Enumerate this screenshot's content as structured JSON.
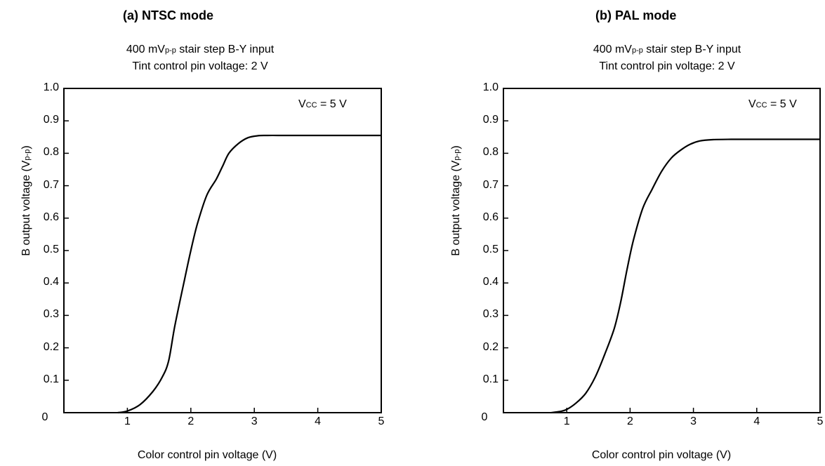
{
  "chart_data": [
    {
      "type": "line",
      "title": "(a)  NTSC mode",
      "subtitle_line1_prefix": "400 mV",
      "subtitle_line1_sub": "p-p",
      "subtitle_line1_suffix": " stair step B-Y input",
      "subtitle_line2": "Tint control pin voltage:  2 V",
      "annotation_prefix": "V",
      "annotation_sub": "CC",
      "annotation_suffix": " = 5 V",
      "xlabel": "Color control pin voltage (V)",
      "ylabel_prefix": "B output voltage (V",
      "ylabel_sub": "p-p",
      "ylabel_suffix": ")",
      "xlim": [
        0,
        5
      ],
      "ylim": [
        0,
        1.0
      ],
      "xticks": [
        "0",
        "1",
        "2",
        "3",
        "4",
        "5"
      ],
      "yticks": [
        "0.1",
        "0.2",
        "0.3",
        "0.4",
        "0.5",
        "0.6",
        "0.7",
        "0.8",
        "0.9",
        "1.0"
      ],
      "x": [
        0.85,
        1.0,
        1.2,
        1.4,
        1.55,
        1.65,
        1.75,
        1.9,
        2.0,
        2.1,
        2.25,
        2.4,
        2.5,
        2.6,
        2.75,
        2.9,
        3.05,
        3.2,
        3.5,
        4.0,
        4.5,
        5.0
      ],
      "y": [
        0.0,
        0.005,
        0.025,
        0.065,
        0.11,
        0.16,
        0.27,
        0.41,
        0.5,
        0.58,
        0.67,
        0.72,
        0.76,
        0.8,
        0.83,
        0.848,
        0.854,
        0.855,
        0.855,
        0.855,
        0.855,
        0.855
      ]
    },
    {
      "type": "line",
      "title": "(b)  PAL mode",
      "subtitle_line1_prefix": "400 mV",
      "subtitle_line1_sub": "p-p",
      "subtitle_line1_suffix": " stair step B-Y input",
      "subtitle_line2": "Tint control pin voltage:  2 V",
      "annotation_prefix": "V",
      "annotation_sub": "CC",
      "annotation_suffix": " = 5 V",
      "xlabel": "Color control pin voltage (V)",
      "ylabel_prefix": "B output voltage (V",
      "ylabel_sub": "p-p",
      "ylabel_suffix": ")",
      "xlim": [
        0,
        5
      ],
      "ylim": [
        0,
        1.0
      ],
      "xticks": [
        "0",
        "1",
        "2",
        "3",
        "4",
        "5"
      ],
      "yticks": [
        "0.1",
        "0.2",
        "0.3",
        "0.4",
        "0.5",
        "0.6",
        "0.7",
        "0.8",
        "0.9",
        "1.0"
      ],
      "x": [
        0.75,
        0.9,
        1.0,
        1.15,
        1.3,
        1.45,
        1.6,
        1.75,
        1.85,
        1.95,
        2.05,
        2.2,
        2.35,
        2.5,
        2.65,
        2.8,
        2.95,
        3.1,
        3.3,
        3.6,
        4.0,
        4.5,
        5.0
      ],
      "y": [
        0.0,
        0.004,
        0.01,
        0.03,
        0.06,
        0.11,
        0.18,
        0.26,
        0.34,
        0.44,
        0.53,
        0.63,
        0.69,
        0.745,
        0.785,
        0.81,
        0.828,
        0.838,
        0.842,
        0.843,
        0.843,
        0.843,
        0.843
      ]
    }
  ]
}
